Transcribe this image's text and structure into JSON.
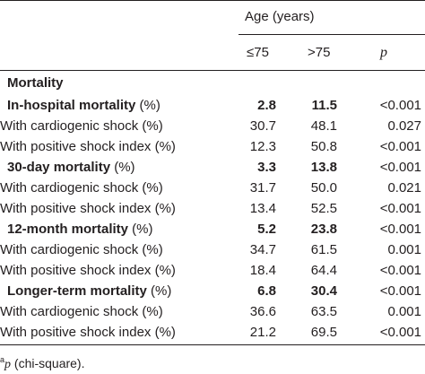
{
  "header": {
    "age_label": "Age (years)",
    "col_le75": "≤75",
    "col_gt75": ">75",
    "col_p": "p"
  },
  "section_title": "Mortality",
  "rows": [
    {
      "label": "In-hospital mortality",
      "suffix": " (%)",
      "le75": "2.8",
      "gt75": "11.5",
      "p": "<0.001",
      "bold": true
    },
    {
      "label": "With cardiogenic shock (%)",
      "suffix": "",
      "le75": "30.7",
      "gt75": "48.1",
      "p": "0.027",
      "bold": false
    },
    {
      "label": "With positive shock index (%)",
      "suffix": "",
      "le75": "12.3",
      "gt75": "50.8",
      "p": "<0.001",
      "bold": false
    },
    {
      "label": "30-day mortality",
      "suffix": " (%)",
      "le75": "3.3",
      "gt75": "13.8",
      "p": "<0.001",
      "bold": true
    },
    {
      "label": "With cardiogenic shock (%)",
      "suffix": "",
      "le75": "31.7",
      "gt75": "50.0",
      "p": "0.021",
      "bold": false
    },
    {
      "label": "With positive shock index (%)",
      "suffix": "",
      "le75": "13.4",
      "gt75": "52.5",
      "p": "<0.001",
      "bold": false
    },
    {
      "label": "12-month mortality",
      "suffix": " (%)",
      "le75": "5.2",
      "gt75": "23.8",
      "p": "<0.001",
      "bold": true
    },
    {
      "label": "With cardiogenic shock (%)",
      "suffix": "",
      "le75": "34.7",
      "gt75": "61.5",
      "p": "0.001",
      "bold": false
    },
    {
      "label": "With positive shock index (%)",
      "suffix": "",
      "le75": "18.4",
      "gt75": "64.4",
      "p": "<0.001",
      "bold": false
    },
    {
      "label": "Longer-term mortality",
      "suffix": " (%)",
      "le75": "6.8",
      "gt75": "30.4",
      "p": "<0.001",
      "bold": true
    },
    {
      "label": "With cardiogenic shock (%)",
      "suffix": "",
      "le75": "36.6",
      "gt75": "63.5",
      "p": "0.001",
      "bold": false
    },
    {
      "label": "With positive shock index (%)",
      "suffix": "",
      "le75": "21.2",
      "gt75": "69.5",
      "p": "<0.001",
      "bold": false
    }
  ],
  "footnote": {
    "marker": "a",
    "p": "p",
    "text": " (chi-square)."
  }
}
